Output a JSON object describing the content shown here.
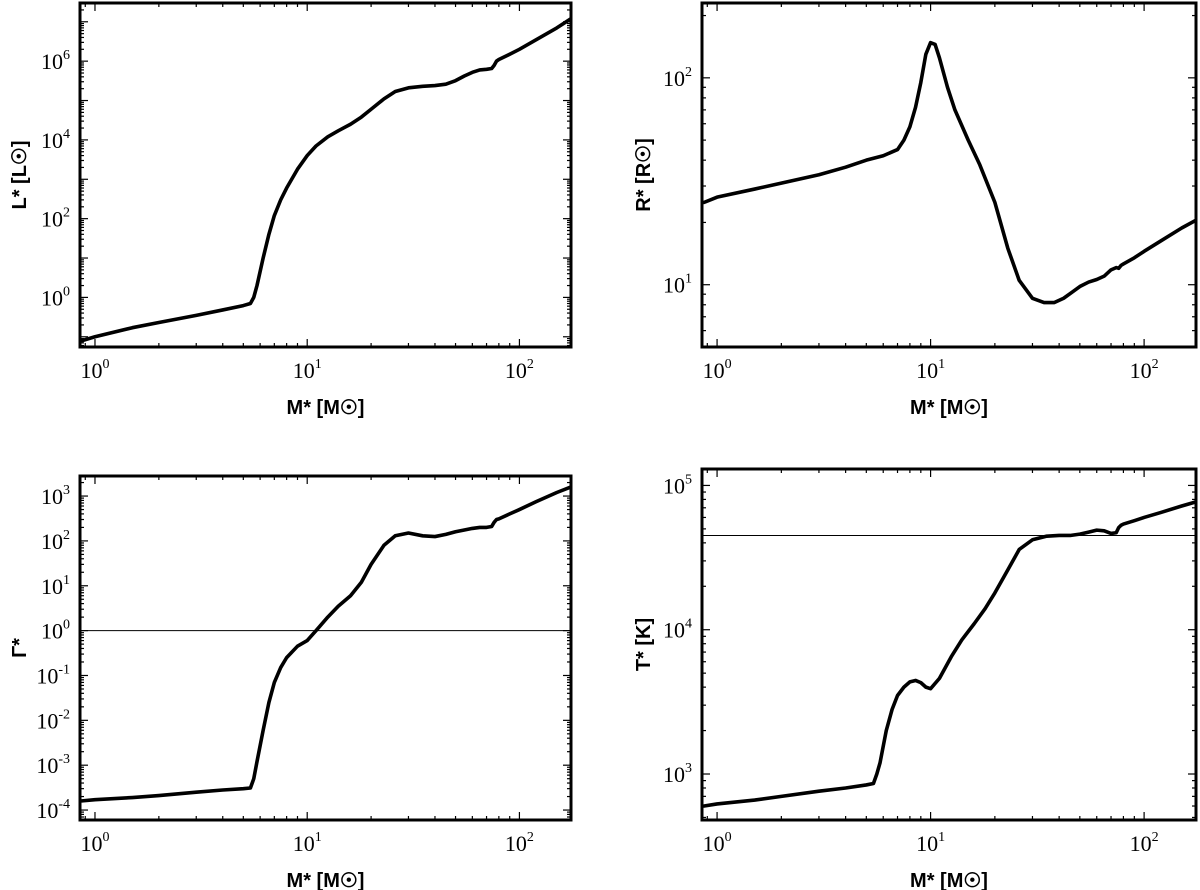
{
  "chart_data": [
    {
      "id": "L",
      "type": "line",
      "xscale": "log",
      "yscale": "log",
      "xlim": [
        0.85,
        175
      ],
      "ylim": [
        0.055,
        30000000
      ],
      "xlabel": "M* [M☉]",
      "ylabel": "L* [L☉]",
      "xticks": [
        {
          "mantissa": "10",
          "exp": "0"
        },
        {
          "mantissa": "10",
          "exp": "1"
        },
        {
          "mantissa": "10",
          "exp": "2"
        }
      ],
      "yticks": [
        {
          "mantissa": "10",
          "exp": "0"
        },
        {
          "mantissa": "10",
          "exp": "2"
        },
        {
          "mantissa": "10",
          "exp": "4"
        },
        {
          "mantissa": "10",
          "exp": "6"
        }
      ],
      "reference_line": null,
      "series": [
        {
          "x": [
            0.87,
            1.0,
            1.5,
            2.0,
            3.0,
            4.0,
            5.0,
            5.4,
            5.6,
            5.8,
            6.2,
            6.6,
            7.0,
            7.5,
            8.0,
            9.0,
            10.0,
            11.0,
            12.5,
            14.0,
            16.0,
            18.0,
            20.0,
            23.0,
            26.0,
            30.0,
            35.0,
            40.0,
            45.0,
            50.0,
            55.0,
            60.0,
            65.0,
            70.0,
            74.0,
            76.0,
            78.0,
            80.0,
            90.0,
            100.0,
            120.0,
            150.0,
            175.0
          ],
          "y": [
            0.08,
            0.1,
            0.17,
            0.23,
            0.35,
            0.48,
            0.62,
            0.7,
            1.0,
            2.0,
            10.0,
            40.0,
            120.0,
            300.0,
            600.0,
            1800.0,
            4000.0,
            7000.0,
            12000.0,
            17000.0,
            25000.0,
            38000.0,
            60000.0,
            110000.0,
            170000.0,
            210000.0,
            230000.0,
            240000.0,
            260000.0,
            320000.0,
            420000.0,
            520000.0,
            600000.0,
            620000.0,
            650000.0,
            780000.0,
            1000000.0,
            1100000.0,
            1500000.0,
            2000000.0,
            3500000.0,
            7000000.0,
            12000000.0
          ]
        }
      ]
    },
    {
      "id": "R",
      "type": "line",
      "xscale": "log",
      "yscale": "log",
      "xlim": [
        0.85,
        175
      ],
      "ylim": [
        5.0,
        230
      ],
      "xlabel": "M* [M☉]",
      "ylabel": "R* [R☉]",
      "xticks": [
        {
          "mantissa": "10",
          "exp": "0"
        },
        {
          "mantissa": "10",
          "exp": "1"
        },
        {
          "mantissa": "10",
          "exp": "2"
        }
      ],
      "yticks": [
        {
          "mantissa": "10",
          "exp": "1"
        },
        {
          "mantissa": "10",
          "exp": "2"
        }
      ],
      "reference_line": null,
      "series": [
        {
          "x": [
            0.87,
            1.0,
            1.5,
            2.0,
            3.0,
            4.0,
            5.0,
            6.0,
            7.0,
            7.5,
            8.0,
            8.5,
            9.0,
            9.5,
            10.0,
            10.5,
            11.0,
            12.0,
            13.0,
            15.0,
            17.0,
            20.0,
            23.0,
            26.0,
            30.0,
            34.0,
            38.0,
            42.0,
            46.0,
            50.0,
            55.0,
            60.0,
            65.0,
            70.0,
            74.0,
            76.0,
            78.0,
            80.0,
            90.0,
            100.0,
            120.0,
            150.0,
            175.0
          ],
          "y": [
            25.0,
            26.5,
            29.0,
            31.0,
            34.0,
            37.0,
            40.0,
            42.0,
            45.0,
            50.0,
            58.0,
            72.0,
            95.0,
            130.0,
            148.0,
            145.0,
            125.0,
            90.0,
            70.0,
            50.0,
            38.0,
            25.0,
            15.0,
            10.5,
            8.6,
            8.2,
            8.2,
            8.6,
            9.2,
            9.8,
            10.3,
            10.6,
            11.0,
            11.8,
            12.1,
            12.0,
            12.4,
            12.6,
            13.5,
            14.5,
            16.3,
            18.8,
            20.5
          ]
        }
      ]
    },
    {
      "id": "Gamma",
      "type": "line",
      "xscale": "log",
      "yscale": "log",
      "xlim": [
        0.85,
        175
      ],
      "ylim": [
        6e-05,
        2800
      ],
      "xlabel": "M* [M☉]",
      "ylabel": "Γ*",
      "xticks": [
        {
          "mantissa": "10",
          "exp": "0"
        },
        {
          "mantissa": "10",
          "exp": "1"
        },
        {
          "mantissa": "10",
          "exp": "2"
        }
      ],
      "yticks": [
        {
          "mantissa": "10",
          "exp": "-4"
        },
        {
          "mantissa": "10",
          "exp": "-3"
        },
        {
          "mantissa": "10",
          "exp": "-2"
        },
        {
          "mantissa": "10",
          "exp": "-1"
        },
        {
          "mantissa": "10",
          "exp": "0"
        },
        {
          "mantissa": "10",
          "exp": "1"
        },
        {
          "mantissa": "10",
          "exp": "2"
        },
        {
          "mantissa": "10",
          "exp": "3"
        }
      ],
      "reference_line": 1,
      "series": [
        {
          "x": [
            0.87,
            1.0,
            1.5,
            2.0,
            3.0,
            4.0,
            5.0,
            5.4,
            5.6,
            5.8,
            6.2,
            6.6,
            7.0,
            7.5,
            8.0,
            9.0,
            10.0,
            11.0,
            12.5,
            14.0,
            16.0,
            18.0,
            20.0,
            23.0,
            26.0,
            30.0,
            35.0,
            40.0,
            45.0,
            50.0,
            55.0,
            60.0,
            65.0,
            70.0,
            74.0,
            76.0,
            78.0,
            80.0,
            90.0,
            100.0,
            120.0,
            150.0,
            175.0
          ],
          "y": [
            0.00016,
            0.00017,
            0.00019,
            0.00021,
            0.00025,
            0.00028,
            0.0003,
            0.00031,
            0.0005,
            0.0012,
            0.006,
            0.025,
            0.07,
            0.15,
            0.25,
            0.45,
            0.6,
            1.0,
            2.0,
            3.5,
            6.0,
            12.0,
            30.0,
            80.0,
            130.0,
            150.0,
            130.0,
            125.0,
            140.0,
            160.0,
            175.0,
            190.0,
            200.0,
            200.0,
            210.0,
            260.0,
            300.0,
            310.0,
            400.0,
            500.0,
            750.0,
            1200.0,
            1600.0
          ]
        }
      ]
    },
    {
      "id": "T",
      "type": "line",
      "xscale": "log",
      "yscale": "log",
      "xlim": [
        0.85,
        175
      ],
      "ylim": [
        480,
        130000
      ],
      "xlabel": "M* [M☉]",
      "ylabel": "T* [K]",
      "xticks": [
        {
          "mantissa": "10",
          "exp": "0"
        },
        {
          "mantissa": "10",
          "exp": "1"
        },
        {
          "mantissa": "10",
          "exp": "2"
        }
      ],
      "yticks": [
        {
          "mantissa": "10",
          "exp": "3"
        },
        {
          "mantissa": "10",
          "exp": "4"
        },
        {
          "mantissa": "10",
          "exp": "5"
        }
      ],
      "reference_line": 45000,
      "series": [
        {
          "x": [
            0.87,
            1.0,
            1.5,
            2.0,
            3.0,
            4.0,
            5.0,
            5.4,
            5.6,
            5.8,
            6.2,
            6.6,
            7.0,
            7.5,
            8.0,
            8.5,
            9.0,
            9.5,
            10.0,
            11.0,
            12.5,
            14.0,
            16.0,
            18.0,
            20.0,
            23.0,
            26.0,
            30.0,
            35.0,
            40.0,
            45.0,
            50.0,
            55.0,
            60.0,
            65.0,
            70.0,
            74.0,
            76.0,
            78.0,
            80.0,
            90.0,
            100.0,
            120.0,
            150.0,
            175.0
          ],
          "y": [
            600.0,
            620.0,
            660.0,
            700.0,
            760.0,
            800.0,
            840.0,
            860.0,
            1000.0,
            1200.0,
            2000.0,
            2800.0,
            3500.0,
            4000.0,
            4350.0,
            4450.0,
            4300.0,
            4000.0,
            3900.0,
            4600.0,
            6500.0,
            8500.0,
            11000.0,
            14000.0,
            18000.0,
            26000.0,
            36000.0,
            42000.0,
            44500.0,
            45000.0,
            45000.0,
            46000.0,
            47500.0,
            49000.0,
            48500.0,
            46500.0,
            47000.0,
            51000.0,
            53000.0,
            54000.0,
            57000.0,
            60000.0,
            65000.0,
            72000.0,
            77000.0
          ]
        }
      ]
    }
  ]
}
